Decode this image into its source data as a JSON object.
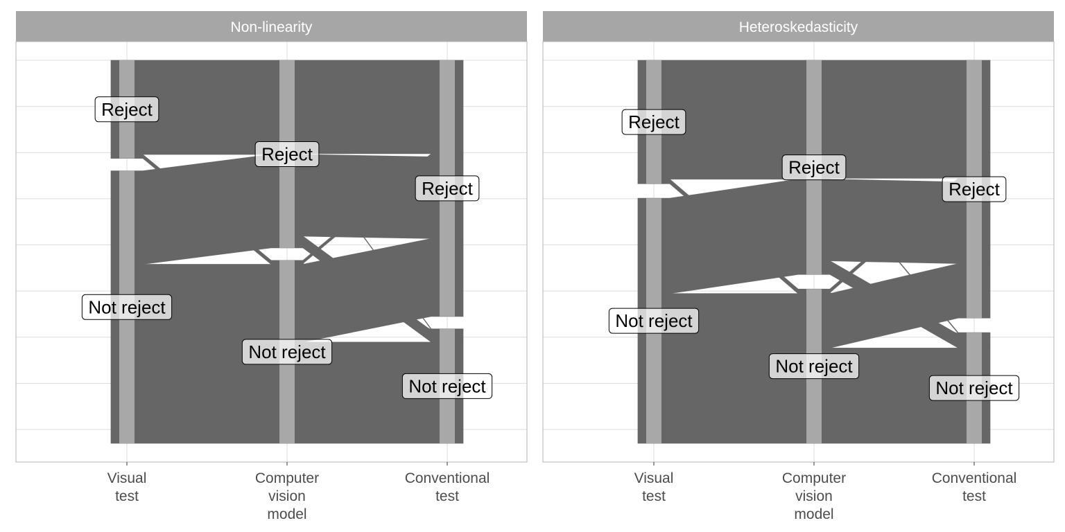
{
  "colors": {
    "strip_background": "#a6a6a6",
    "strip_text": "#ffffff",
    "panel_border": "#b3b3b3",
    "grid": "#dcdcdc",
    "flow": "#666666",
    "stratum": "#b4b4b4",
    "label_background": "#ffffff",
    "label_border": "#000000",
    "tick_text": "#4d4d4d"
  },
  "chart_data": [
    {
      "type": "alluvial",
      "title": "Non-linearity",
      "axes": [
        "Visual\ntest",
        "Computer\nvision\nmodel",
        "Conventional\ntest"
      ],
      "stratum_labels": [
        "Reject",
        "Not reject"
      ],
      "node_labels": [
        {
          "axis": 0,
          "text": "Reject"
        },
        {
          "axis": 0,
          "text": "Not reject"
        },
        {
          "axis": 1,
          "text": "Reject"
        },
        {
          "axis": 1,
          "text": "Not reject"
        },
        {
          "axis": 2,
          "text": "Reject"
        },
        {
          "axis": 2,
          "text": "Not reject"
        }
      ],
      "flows": [
        {
          "path": [
            "Reject",
            "Reject",
            "Reject"
          ],
          "count": 12
        },
        {
          "path": [
            "Reject",
            "Reject",
            "Not reject"
          ],
          "count": 0.1
        },
        {
          "path": [
            "Reject",
            "Not reject",
            "Not reject"
          ],
          "count": 0.1
        },
        {
          "path": [
            "Reject",
            "Not reject",
            "Reject"
          ],
          "count": 0.4
        },
        {
          "path": [
            "Not reject",
            "Reject",
            "Reject"
          ],
          "count": 10.5
        },
        {
          "path": [
            "Not reject",
            "Reject",
            "Not reject"
          ],
          "count": 1.5
        },
        {
          "path": [
            "Not reject",
            "Not reject",
            "Reject"
          ],
          "count": 10
        },
        {
          "path": [
            "Not reject",
            "Not reject",
            "Not reject"
          ],
          "count": 13
        }
      ]
    },
    {
      "type": "alluvial",
      "title": "Heteroskedasticity",
      "axes": [
        "Visual\ntest",
        "Computer\nvision\nmodel",
        "Conventional\ntest"
      ],
      "stratum_labels": [
        "Reject",
        "Not reject"
      ],
      "node_labels": [
        {
          "axis": 0,
          "text": "Reject"
        },
        {
          "axis": 0,
          "text": "Not reject"
        },
        {
          "axis": 1,
          "text": "Reject"
        },
        {
          "axis": 1,
          "text": "Not reject"
        },
        {
          "axis": 2,
          "text": "Reject"
        },
        {
          "axis": 2,
          "text": "Not reject"
        }
      ],
      "flows": [
        {
          "path": [
            "Reject",
            "Reject",
            "Reject"
          ],
          "count": 13
        },
        {
          "path": [
            "Reject",
            "Reject",
            "Not reject"
          ],
          "count": 0.1
        },
        {
          "path": [
            "Reject",
            "Not reject",
            "Not reject"
          ],
          "count": 0.1
        },
        {
          "path": [
            "Reject",
            "Not reject",
            "Reject"
          ],
          "count": 0.4
        },
        {
          "path": [
            "Not reject",
            "Reject",
            "Reject"
          ],
          "count": 9
        },
        {
          "path": [
            "Not reject",
            "Reject",
            "Not reject"
          ],
          "count": 1.5
        },
        {
          "path": [
            "Not reject",
            "Not reject",
            "Reject"
          ],
          "count": 6
        },
        {
          "path": [
            "Not reject",
            "Not reject",
            "Not reject"
          ],
          "count": 10.5
        }
      ]
    }
  ]
}
